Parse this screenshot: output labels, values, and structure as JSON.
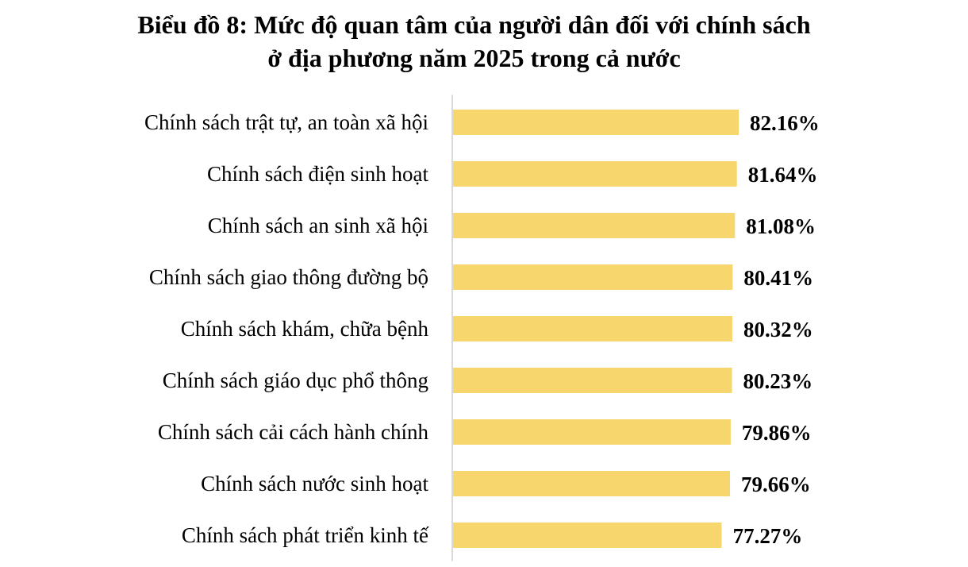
{
  "chart_data": {
    "type": "bar",
    "orientation": "horizontal",
    "title_line1": "Biểu đồ 8: Mức độ quan tâm của người dân đối với chính sách",
    "title_line2": "ở địa phương năm 2025 trong cả nước",
    "categories": [
      "Chính sách trật tự, an toàn xã hội",
      "Chính sách điện sinh hoạt",
      "Chính sách an sinh xã hội",
      "Chính sách giao thông đường bộ",
      "Chính sách khám, chữa bệnh",
      "Chính sách giáo dục phổ thông",
      "Chính sách cải cách hành chính",
      "Chính sách nước sinh hoạt",
      "Chính sách phát triển kinh tế"
    ],
    "values": [
      82.16,
      81.64,
      81.08,
      80.41,
      80.32,
      80.23,
      79.86,
      79.66,
      77.27
    ],
    "value_labels": [
      "82.16%",
      "81.64%",
      "81.08%",
      "80.41%",
      "80.32%",
      "80.23%",
      "79.86%",
      "79.66%",
      "77.27%"
    ],
    "bar_color": "#F7D66E",
    "axis_color": "#D9D9D9",
    "grid": false,
    "legend": "none"
  }
}
